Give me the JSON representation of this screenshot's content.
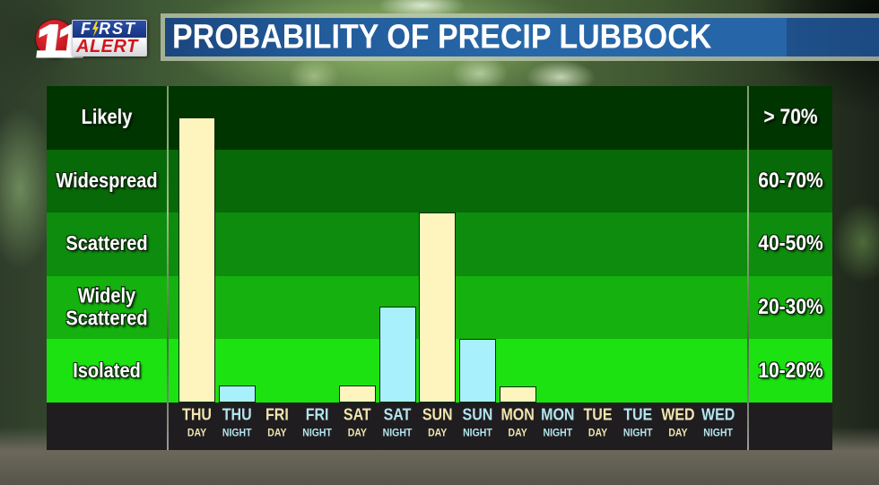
{
  "logo": {
    "channel": "11",
    "line1": "FIRST",
    "line2": "ALERT"
  },
  "header": {
    "title": "PROBABILITY OF PRECIP LUBBOCK"
  },
  "categories": [
    {
      "label": "Likely",
      "range": "> 70%",
      "color": "#003500"
    },
    {
      "label": "Widespread",
      "range": "60-70%",
      "color": "#076907"
    },
    {
      "label": "Scattered",
      "range": "40-50%",
      "color": "#0d8c0d"
    },
    {
      "label": "Widely Scattered",
      "range": "20-30%",
      "color": "#15b10e"
    },
    {
      "label": "Isolated",
      "range": "10-20%",
      "color": "#1ce211"
    }
  ],
  "periods": [
    {
      "day": "THU",
      "part": "DAY"
    },
    {
      "day": "THU",
      "part": "NIGHT"
    },
    {
      "day": "FRI",
      "part": "DAY"
    },
    {
      "day": "FRI",
      "part": "NIGHT"
    },
    {
      "day": "SAT",
      "part": "DAY"
    },
    {
      "day": "SAT",
      "part": "NIGHT"
    },
    {
      "day": "SUN",
      "part": "DAY"
    },
    {
      "day": "SUN",
      "part": "NIGHT"
    },
    {
      "day": "MON",
      "part": "DAY"
    },
    {
      "day": "MON",
      "part": "NIGHT"
    },
    {
      "day": "TUE",
      "part": "DAY"
    },
    {
      "day": "TUE",
      "part": "NIGHT"
    },
    {
      "day": "WED",
      "part": "DAY"
    },
    {
      "day": "WED",
      "part": "NIGHT"
    }
  ],
  "colors": {
    "day_bar": "#fdf5bd",
    "night_bar": "#a8f0fb",
    "day_label": "#f0e5ae",
    "night_label": "#b3e5ee",
    "title_bar": "#2666a7",
    "axis_strip": "#201d20",
    "logo_red": "#c4161e",
    "logo_blue": "#1b3c8f",
    "bolt_yellow": "#ffd21a"
  },
  "chart_data": {
    "type": "bar",
    "title": "PROBABILITY OF PRECIP LUBBOCK",
    "categories": [
      "THU DAY",
      "THU NIGHT",
      "FRI DAY",
      "FRI NIGHT",
      "SAT DAY",
      "SAT NIGHT",
      "SUN DAY",
      "SUN NIGHT",
      "MON DAY",
      "MON NIGHT",
      "TUE DAY",
      "TUE NIGHT",
      "WED DAY",
      "WED NIGHT"
    ],
    "values": [
      80,
      10,
      0,
      0,
      10,
      25,
      50,
      20,
      10,
      0,
      0,
      0,
      0,
      0
    ],
    "levels": [
      4.5,
      0.27,
      0,
      0,
      0.27,
      1.52,
      3.0,
      1.0,
      0.26,
      0,
      0,
      0,
      0,
      0
    ],
    "y_bands": [
      {
        "label": "Isolated",
        "range": "10-20%"
      },
      {
        "label": "Widely Scattered",
        "range": "20-30%"
      },
      {
        "label": "Scattered",
        "range": "40-50%"
      },
      {
        "label": "Widespread",
        "range": "60-70%"
      },
      {
        "label": "Likely",
        "range": "> 70%"
      }
    ],
    "ylim": [
      0,
      5
    ],
    "xlabel": "",
    "ylabel": "",
    "grid": false,
    "legend": "none",
    "bar_colors": {
      "DAY": "#fdf5bd",
      "NIGHT": "#a8f0fb"
    }
  }
}
